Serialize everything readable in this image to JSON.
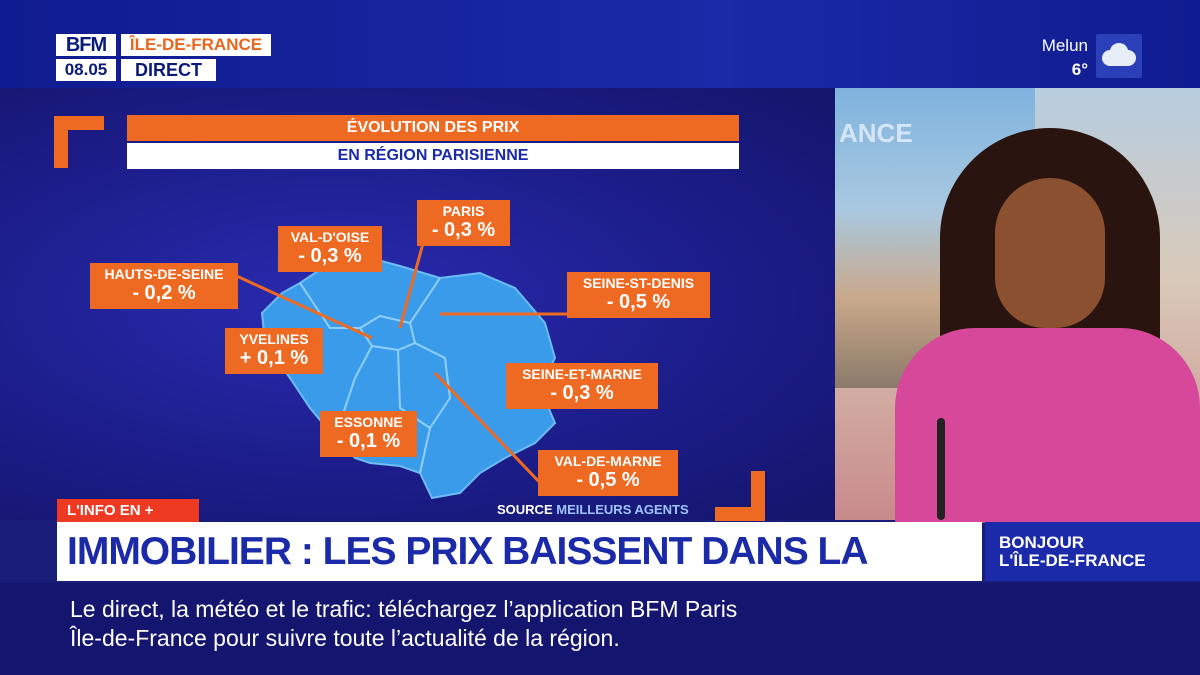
{
  "channel": {
    "logo": "BFM",
    "region": "ÎLE-DE-FRANCE",
    "time": "08.05",
    "live": "DIRECT"
  },
  "weather": {
    "city": "Melun",
    "temp": "6°",
    "icon": "cloud-icon"
  },
  "graphic": {
    "title": "ÉVOLUTION DES PRIX",
    "subtitle": "EN RÉGION PARISIENNE",
    "regions": [
      {
        "name": "PARIS",
        "value": "- 0,3 %"
      },
      {
        "name": "VAL-D'OISE",
        "value": "- 0,3 %"
      },
      {
        "name": "HAUTS-DE-SEINE",
        "value": "- 0,2 %"
      },
      {
        "name": "SEINE-ST-DENIS",
        "value": "- 0,5 %"
      },
      {
        "name": "YVELINES",
        "value": "+ 0,1 %"
      },
      {
        "name": "SEINE-ET-MARNE",
        "value": "- 0,3 %"
      },
      {
        "name": "ESSONNE",
        "value": "- 0,1 %"
      },
      {
        "name": "VAL-DE-MARNE",
        "value": "- 0,5 %"
      }
    ],
    "source_label": "SOURCE",
    "source_name": "MEILLEURS AGENTS"
  },
  "studio": {
    "screen_text": "ANCE"
  },
  "lower_third": {
    "tag": "L'INFO EN +",
    "headline": "IMMOBILIER : LES PRIX BAISSENT DANS LA RÉGION",
    "show_line1": "BONJOUR",
    "show_line2": "L'ÎLE-DE-FRANCE"
  },
  "ticker": {
    "line1": "Le direct, la météo et le trafic: téléchargez l’application BFM Paris",
    "line2": "Île-de-France pour suivre toute l’actualité de la région."
  },
  "colors": {
    "accent": "#ee6a22",
    "brand_blue": "#1a2aa8",
    "map_blue": "#3a9bea"
  }
}
